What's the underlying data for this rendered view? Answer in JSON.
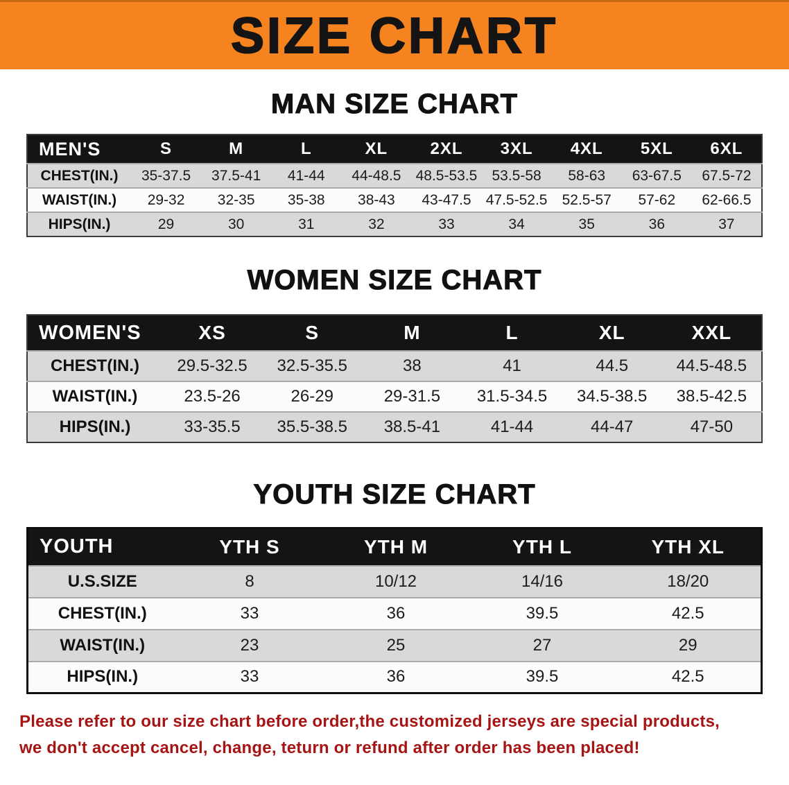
{
  "banner": {
    "title": "SIZE CHART"
  },
  "colors": {
    "banner_bg": "#f5831f",
    "table_header_bg": "#141414",
    "row_gray": "#d9d9d9",
    "note_red": "#a61414"
  },
  "men": {
    "heading": "MAN SIZE CHART",
    "header": [
      "MEN'S",
      "S",
      "M",
      "L",
      "XL",
      "2XL",
      "3XL",
      "4XL",
      "5XL",
      "6XL"
    ],
    "rows": [
      [
        "CHEST(IN.)",
        "35-37.5",
        "37.5-41",
        "41-44",
        "44-48.5",
        "48.5-53.5",
        "53.5-58",
        "58-63",
        "63-67.5",
        "67.5-72"
      ],
      [
        "WAIST(IN.)",
        "29-32",
        "32-35",
        "35-38",
        "38-43",
        "43-47.5",
        "47.5-52.5",
        "52.5-57",
        "57-62",
        "62-66.5"
      ],
      [
        "HIPS(IN.)",
        "29",
        "30",
        "31",
        "32",
        "33",
        "34",
        "35",
        "36",
        "37"
      ]
    ]
  },
  "women": {
    "heading": "WOMEN SIZE CHART",
    "header": [
      "WOMEN'S",
      "XS",
      "S",
      "M",
      "L",
      "XL",
      "XXL"
    ],
    "rows": [
      [
        "CHEST(IN.)",
        "29.5-32.5",
        "32.5-35.5",
        "38",
        "41",
        "44.5",
        "44.5-48.5"
      ],
      [
        "WAIST(IN.)",
        "23.5-26",
        "26-29",
        "29-31.5",
        "31.5-34.5",
        "34.5-38.5",
        "38.5-42.5"
      ],
      [
        "HIPS(IN.)",
        "33-35.5",
        "35.5-38.5",
        "38.5-41",
        "41-44",
        "44-47",
        "47-50"
      ]
    ]
  },
  "youth": {
    "heading": "YOUTH SIZE CHART",
    "header": [
      "YOUTH",
      "YTH S",
      "YTH M",
      "YTH L",
      "YTH XL"
    ],
    "rows": [
      [
        "U.S.SIZE",
        "8",
        "10/12",
        "14/16",
        "18/20"
      ],
      [
        "CHEST(IN.)",
        "33",
        "36",
        "39.5",
        "42.5"
      ],
      [
        "WAIST(IN.)",
        "23",
        "25",
        "27",
        "29"
      ],
      [
        "HIPS(IN.)",
        "33",
        "36",
        "39.5",
        "42.5"
      ]
    ]
  },
  "note": {
    "line1": "Please refer to our size chart before order,the customized jerseys are special products,",
    "line2": "we don't accept cancel, change, teturn or refund after order has been placed!"
  }
}
